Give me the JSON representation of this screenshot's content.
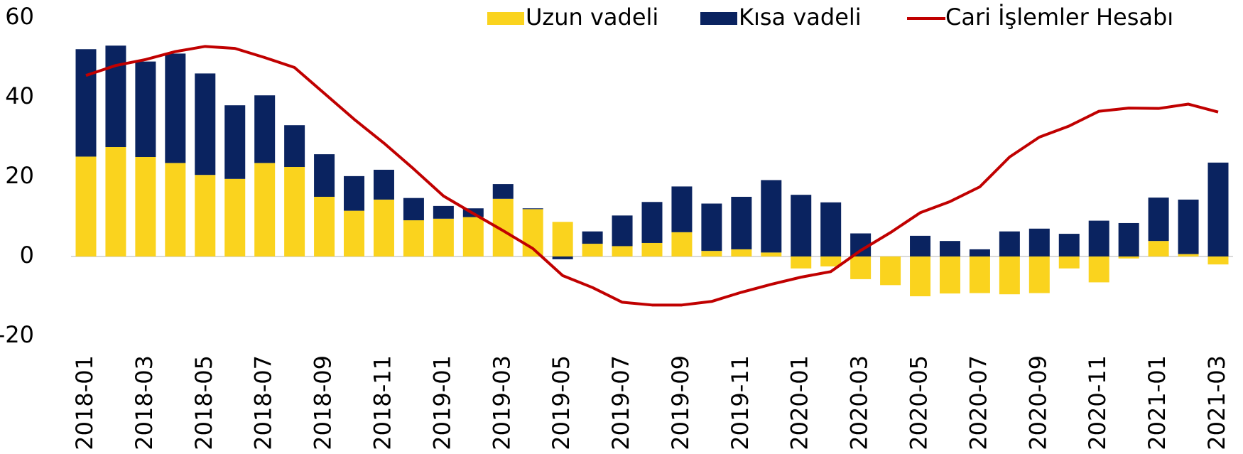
{
  "chart_data": {
    "type": "bar",
    "categories": [
      "2018-01",
      null,
      "2018-03",
      null,
      "2018-05",
      null,
      "2018-07",
      null,
      "2018-09",
      null,
      "2018-11",
      null,
      "2019-01",
      null,
      "2019-03",
      null,
      "2019-05",
      null,
      "2019-07",
      null,
      "2019-09",
      null,
      "2019-11",
      null,
      "2020-01",
      null,
      "2020-03",
      null,
      "2020-05",
      null,
      "2020-07",
      null,
      "2020-09",
      null,
      "2020-11",
      null,
      "2021-01",
      null,
      "2021-03"
    ],
    "series": [
      {
        "name": "Uzun vadeli",
        "color": "#fad31e",
        "type": "bar",
        "values": [
          25.1,
          27.5,
          25,
          23.5,
          20.5,
          19.5,
          23.5,
          22.5,
          15,
          11.5,
          14.3,
          9.1,
          9.5,
          9.9,
          14.5,
          11.9,
          8.7,
          3.2,
          2.6,
          3.4,
          6.1,
          1.4,
          1.8,
          1,
          -3,
          -2.5,
          -5.7,
          -7.2,
          -10,
          -9.3,
          -9.2,
          -9.5,
          -9.2,
          -3,
          -6.5,
          -0.5,
          3.9,
          0.6,
          -2
        ]
      },
      {
        "name": "Kısa vadeli",
        "color": "#0a2360",
        "type": "bar",
        "values": [
          27,
          25.5,
          24,
          27.5,
          25.5,
          18.5,
          17,
          10.5,
          10.7,
          8.7,
          7.5,
          5.6,
          3.2,
          2.2,
          3.7,
          0.2,
          -0.7,
          3.1,
          7.7,
          10.3,
          11.5,
          11.9,
          13.2,
          18.2,
          15.5,
          13.6,
          5.8,
          0,
          5.2,
          3.9,
          1.8,
          6.3,
          7,
          5.7,
          9,
          8.4,
          10.9,
          13.7,
          23.6
        ]
      },
      {
        "name": "Cari İşlemler Hesabı",
        "color": "#c00000",
        "type": "line",
        "values": [
          45.5,
          48,
          49.5,
          51.5,
          52.8,
          52.3,
          50,
          47.5,
          41,
          34.5,
          28.5,
          22,
          15.2,
          10.8,
          6.5,
          2,
          -4.8,
          -7.8,
          -11.5,
          -12.2,
          -12.2,
          -11.3,
          -9,
          -7,
          -5.2,
          -3.8,
          1.5,
          6,
          11,
          13.8,
          17.5,
          25,
          30,
          32.8,
          36.5,
          37.3,
          37.2,
          38.3,
          36.3
        ]
      }
    ],
    "ylim": [
      -20,
      60
    ],
    "yticks": [
      -20,
      0,
      20,
      40,
      60
    ],
    "legend": "top"
  }
}
